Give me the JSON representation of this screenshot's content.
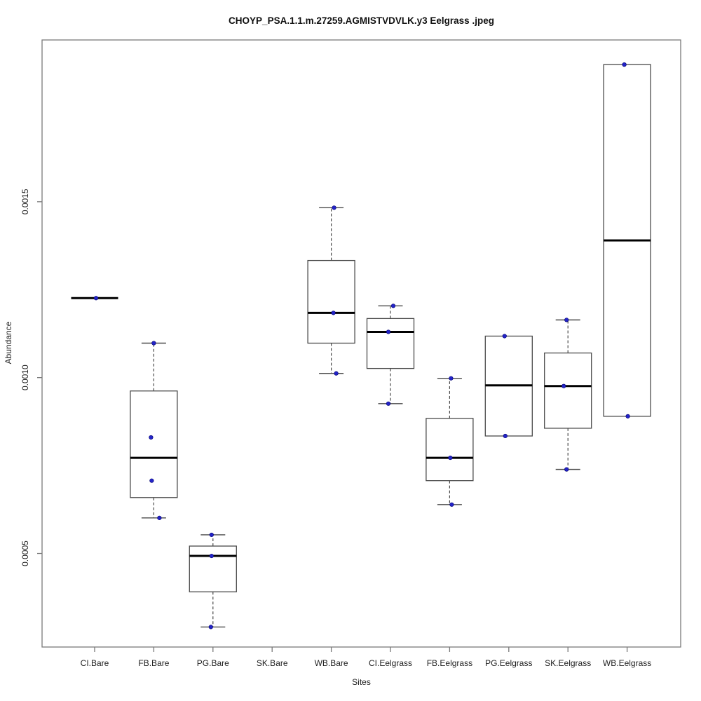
{
  "chart_data": {
    "type": "boxplot",
    "title": "CHOYP_PSA.1.1.m.27259.AGMISTVDVLK.y3 Eelgrass .jpeg",
    "xlabel": "Sites",
    "ylabel": "Abundance",
    "ylim": [
      0.000234,
      0.00196
    ],
    "yticks": [
      0.0005,
      0.001,
      0.0015
    ],
    "ytick_labels": [
      "0.0005",
      "0.0010",
      "0.0015"
    ],
    "categories": [
      "CI.Bare",
      "FB.Bare",
      "PG.Bare",
      "SK.Bare",
      "WB.Bare",
      "CI.Eelgrass",
      "FB.Eelgrass",
      "PG.Eelgrass",
      "SK.Eelgrass",
      "WB.Eelgrass"
    ],
    "boxes": [
      {
        "category": "CI.Bare",
        "low": 0.001226,
        "q1": 0.001226,
        "median": 0.001226,
        "q3": 0.001226,
        "high": 0.001226,
        "points": [
          {
            "v": 0.001226,
            "dx": 2
          }
        ]
      },
      {
        "category": "FB.Bare",
        "low": 0.000601,
        "q1": 0.000659,
        "median": 0.000772,
        "q3": 0.000962,
        "high": 0.001098,
        "points": [
          {
            "v": 0.001098,
            "dx": 0
          },
          {
            "v": 0.00083,
            "dx": -4
          },
          {
            "v": 0.000707,
            "dx": -3
          },
          {
            "v": 0.000601,
            "dx": 8
          }
        ]
      },
      {
        "category": "PG.Bare",
        "low": 0.000291,
        "q1": 0.000391,
        "median": 0.000493,
        "q3": 0.000521,
        "high": 0.000553,
        "points": [
          {
            "v": 0.000553,
            "dx": -2
          },
          {
            "v": 0.000493,
            "dx": -2
          },
          {
            "v": 0.000291,
            "dx": -3
          }
        ]
      },
      {
        "category": "SK.Bare",
        "empty": true,
        "points": []
      },
      {
        "category": "WB.Bare",
        "low": 0.001012,
        "q1": 0.001098,
        "median": 0.001184,
        "q3": 0.001333,
        "high": 0.001483,
        "points": [
          {
            "v": 0.001483,
            "dx": 4
          },
          {
            "v": 0.001184,
            "dx": 3
          },
          {
            "v": 0.001012,
            "dx": 7
          }
        ]
      },
      {
        "category": "CI.Eelgrass",
        "low": 0.000926,
        "q1": 0.001026,
        "median": 0.00113,
        "q3": 0.001168,
        "high": 0.001204,
        "points": [
          {
            "v": 0.001204,
            "dx": 4
          },
          {
            "v": 0.00113,
            "dx": -3
          },
          {
            "v": 0.000926,
            "dx": -3
          }
        ]
      },
      {
        "category": "FB.Eelgrass",
        "low": 0.000639,
        "q1": 0.000707,
        "median": 0.000772,
        "q3": 0.000884,
        "high": 0.000998,
        "points": [
          {
            "v": 0.000998,
            "dx": 2
          },
          {
            "v": 0.000772,
            "dx": 1
          },
          {
            "v": 0.000639,
            "dx": 3
          }
        ]
      },
      {
        "category": "PG.Eelgrass",
        "low": 0.000834,
        "q1": 0.000834,
        "median": 0.000978,
        "q3": 0.001118,
        "high": 0.001118,
        "points": [
          {
            "v": 0.001118,
            "dx": -6
          },
          {
            "v": 0.000834,
            "dx": -5
          }
        ]
      },
      {
        "category": "SK.Eelgrass",
        "low": 0.000739,
        "q1": 0.000856,
        "median": 0.000976,
        "q3": 0.00107,
        "high": 0.001164,
        "points": [
          {
            "v": 0.001164,
            "dx": -2
          },
          {
            "v": 0.000976,
            "dx": -6
          },
          {
            "v": 0.000739,
            "dx": -2
          }
        ]
      },
      {
        "category": "WB.Eelgrass",
        "low": 0.00089,
        "q1": 0.00089,
        "median": 0.00139,
        "q3": 0.00189,
        "high": 0.00189,
        "points": [
          {
            "v": 0.00189,
            "dx": -4
          },
          {
            "v": 0.00089,
            "dx": 1
          }
        ]
      }
    ],
    "colors": {
      "point": "#2323c8",
      "point_edge": "#00006e",
      "box_border": "#4a4a4a",
      "median": "#000000",
      "whisker": "#4a4a4a",
      "frame": "#7a7a7a",
      "tick_text": "#222222"
    },
    "layout": {
      "grid": false,
      "legend": "none"
    }
  }
}
